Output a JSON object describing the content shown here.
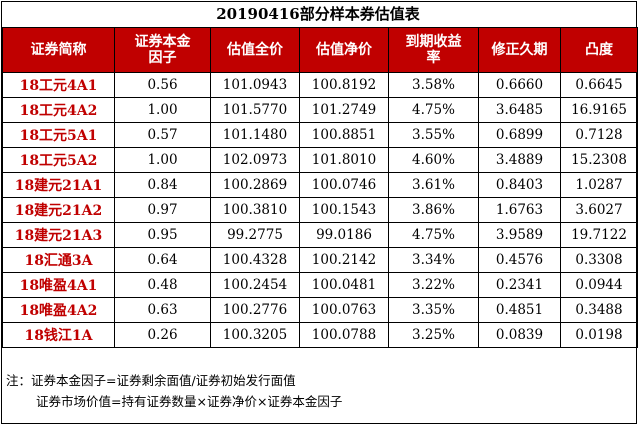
{
  "title": "20190416部分样本券估值表",
  "columns": [
    "证券简称",
    "证券本金\n因子",
    "估值全价",
    "估值净价",
    "到期收益\n率",
    "修正久期",
    "凸度"
  ],
  "rows": [
    [
      "18工元4A1",
      "0.56",
      "101.0943",
      "100.8192",
      "3.58%",
      "0.6660",
      "0.6645"
    ],
    [
      "18工元4A2",
      "1.00",
      "101.5770",
      "101.2749",
      "4.75%",
      "3.6485",
      "16.9165"
    ],
    [
      "18工元5A1",
      "0.57",
      "101.1480",
      "100.8851",
      "3.55%",
      "0.6899",
      "0.7128"
    ],
    [
      "18工元5A2",
      "1.00",
      "102.0973",
      "101.8010",
      "4.60%",
      "3.4889",
      "15.2308"
    ],
    [
      "18建元21A1",
      "0.84",
      "100.2869",
      "100.0746",
      "3.61%",
      "0.8403",
      "1.0287"
    ],
    [
      "18建元21A2",
      "0.97",
      "100.3810",
      "100.1543",
      "3.86%",
      "1.6763",
      "3.6027"
    ],
    [
      "18建元21A3",
      "0.95",
      "99.2775",
      "99.0186",
      "4.75%",
      "3.9589",
      "19.7122"
    ],
    [
      "18汇通3A",
      "0.64",
      "100.4328",
      "100.2142",
      "3.34%",
      "0.4576",
      "0.3308"
    ],
    [
      "18唯盈4A1",
      "0.48",
      "100.2454",
      "100.0481",
      "3.22%",
      "0.2341",
      "0.0944"
    ],
    [
      "18唯盈4A2",
      "0.63",
      "100.2776",
      "100.0763",
      "3.35%",
      "0.4851",
      "0.3488"
    ],
    [
      "18钱江1A",
      "0.26",
      "100.3205",
      "100.0788",
      "3.25%",
      "0.0839",
      "0.0198"
    ]
  ],
  "notes": [
    "注：证券本金因子=证券剩余面值/证券初始发行面值",
    "证券市场价值=持有证券数量×证券净价×证券本金因子"
  ]
}
